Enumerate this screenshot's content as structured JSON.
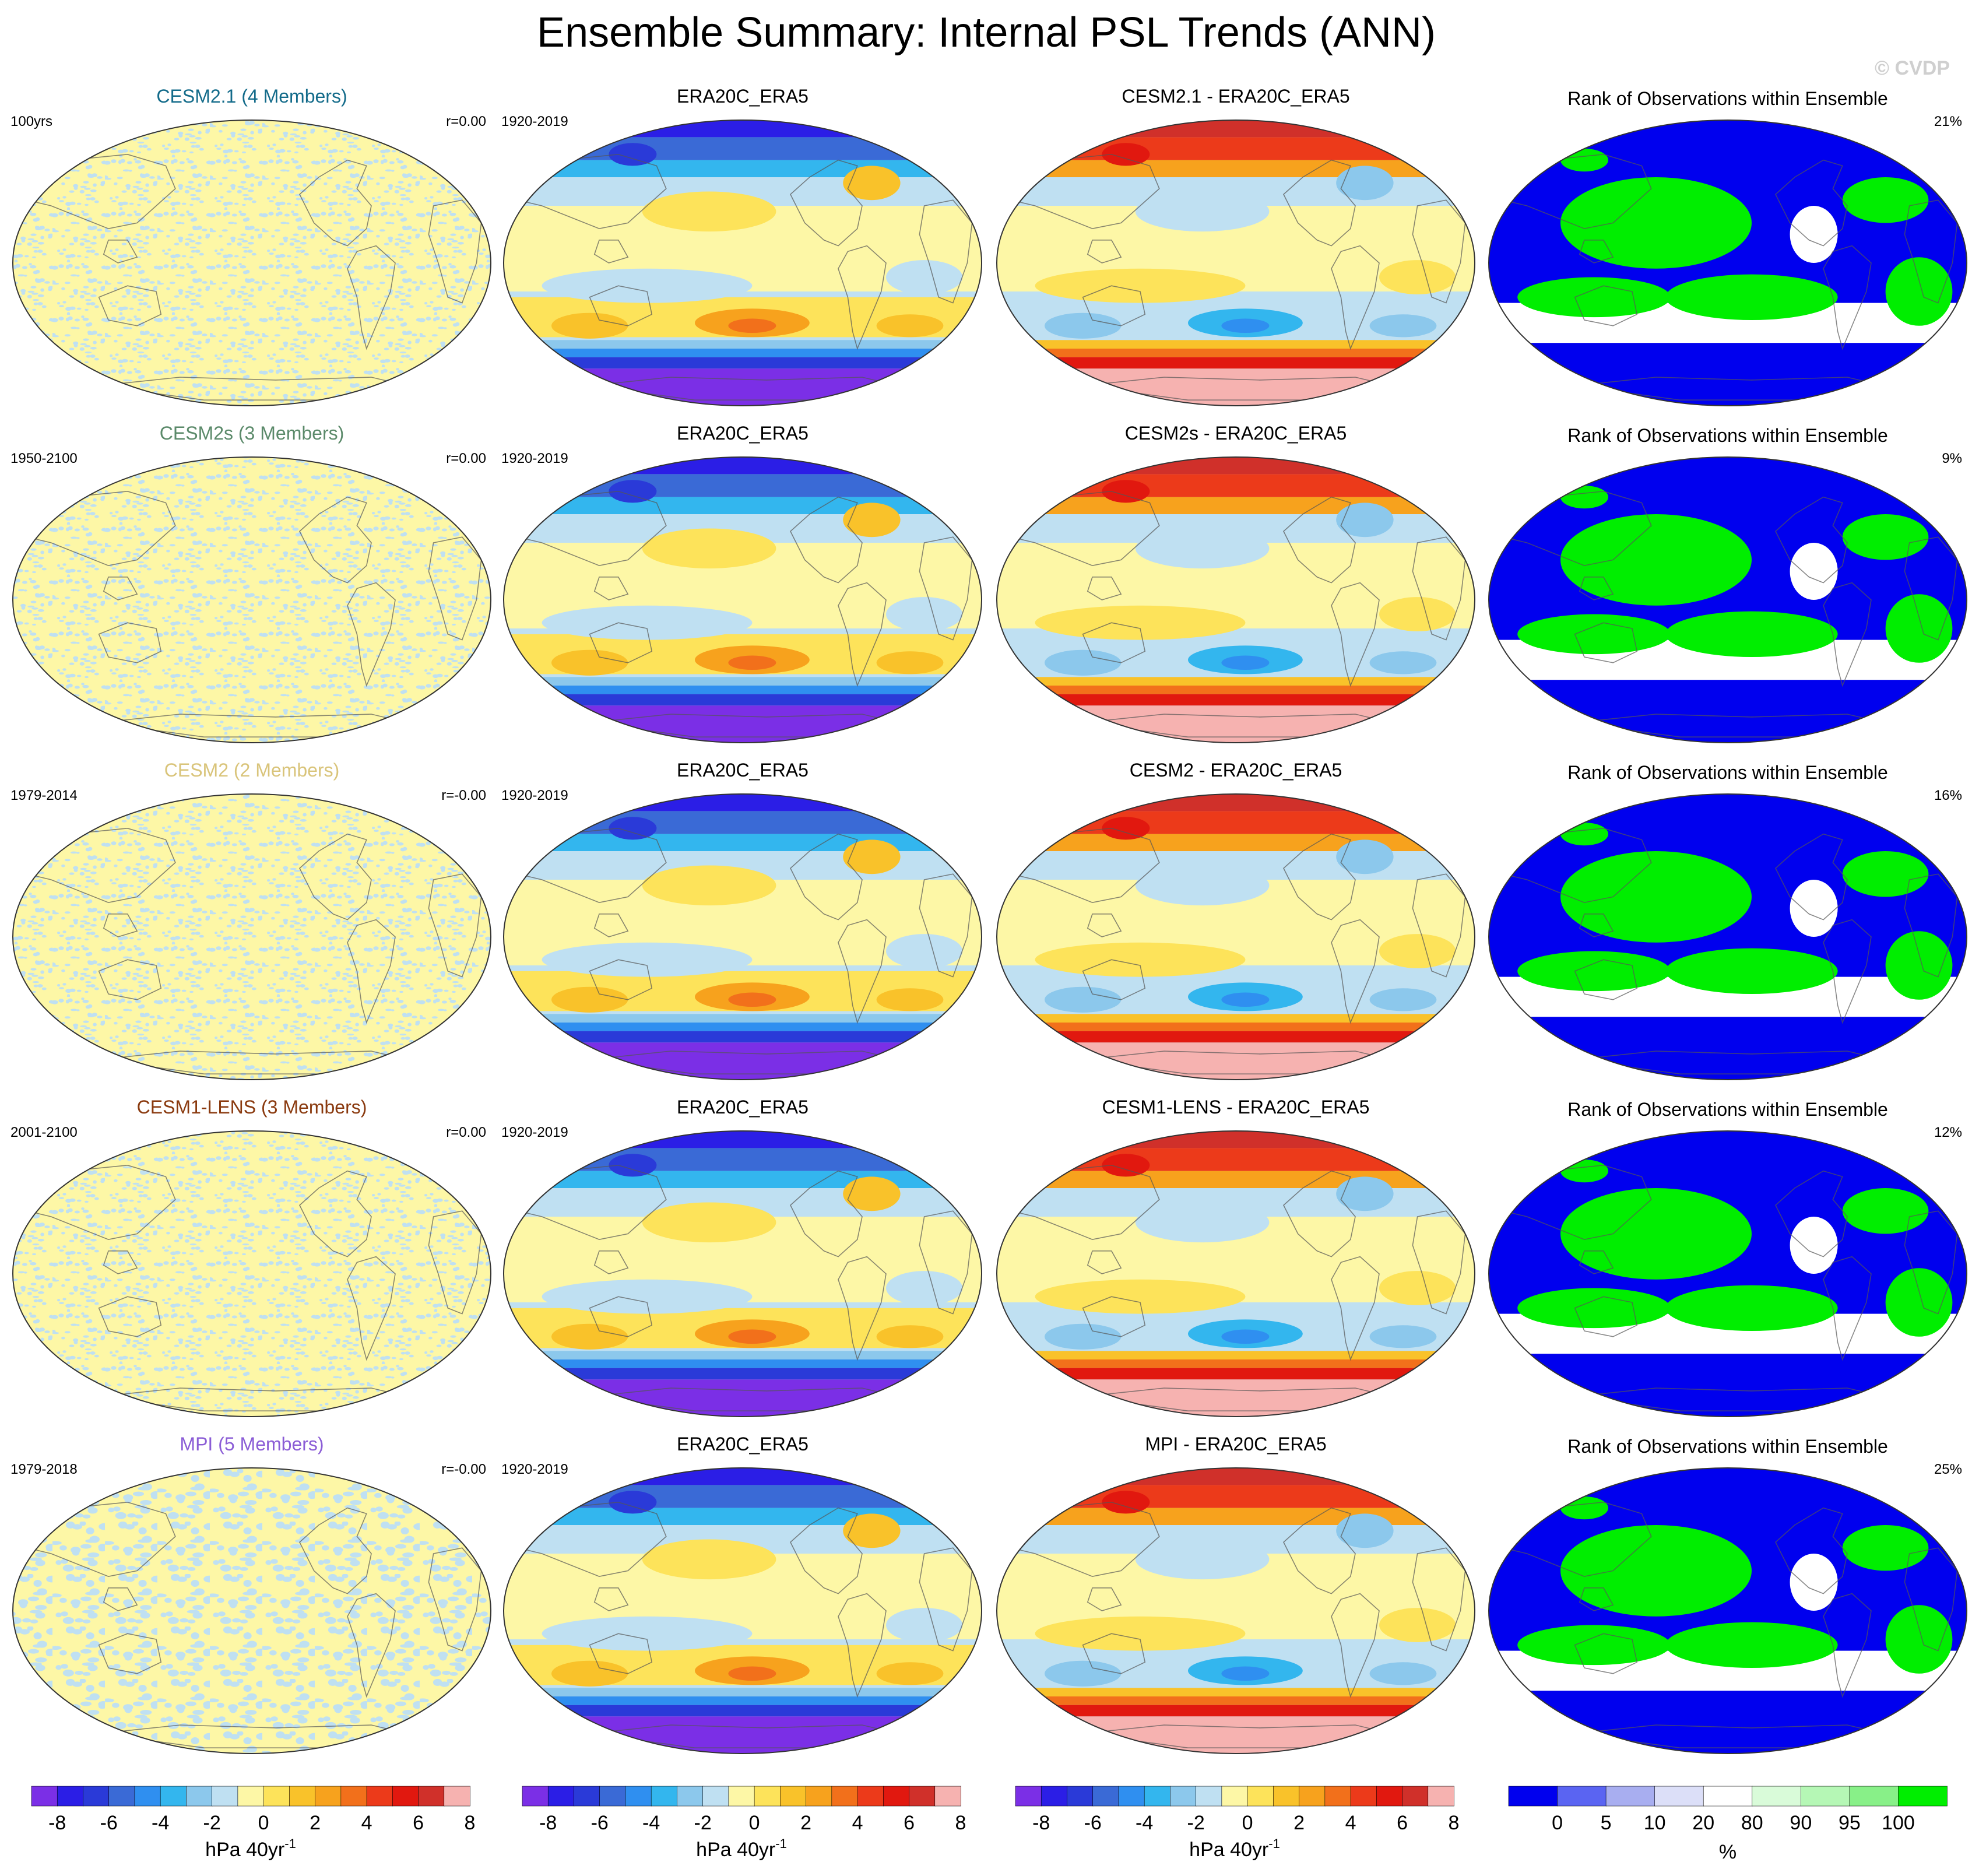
{
  "title": "Ensemble Summary: Internal PSL Trends (ANN)",
  "watermark": "© CVDP",
  "colors": {
    "trend_scale": [
      "#7b2fe6",
      "#2b1ee6",
      "#2a3ad8",
      "#3a6ad6",
      "#2f8ff0",
      "#33b6ee",
      "#8cc8ec",
      "#bfe0f2",
      "#fdf7a6",
      "#fde35a",
      "#f9c22a",
      "#f7a21d",
      "#f2701b",
      "#ec3a1a",
      "#e1180f",
      "#d0302a",
      "#f6b2b0"
    ],
    "rank_scale": [
      "#0000ee",
      "#5a64f2",
      "#a8aef0",
      "#dcdff8",
      "#ffffff",
      "#d9fbd9",
      "#b5f7b5",
      "#88f088",
      "#00ee00"
    ],
    "ocean_cool": "#bfe0f2",
    "ocean_warm": "#fdf7a6",
    "model_title_colors": [
      "#136b8a",
      "#5b8a6a",
      "#d9c47a",
      "#8a3a0f",
      "#8b5dd6"
    ]
  },
  "rows": [
    {
      "model_title": "CESM2.1 (4 Members)",
      "period": "100yrs",
      "corr": "r=0.00",
      "obs_title": "ERA20C_ERA5",
      "obs_period": "1920-2019",
      "diff_title": "CESM2.1 - ERA20C_ERA5",
      "rank_title": "Rank of Observations within Ensemble",
      "rank_pct": "21%"
    },
    {
      "model_title": "CESM2s (3 Members)",
      "period": "1950-2100",
      "corr": "r=0.00",
      "obs_title": "ERA20C_ERA5",
      "obs_period": "1920-2019",
      "diff_title": "CESM2s - ERA20C_ERA5",
      "rank_title": "Rank of Observations within Ensemble",
      "rank_pct": "9%"
    },
    {
      "model_title": "CESM2 (2 Members)",
      "period": "1979-2014",
      "corr": "r=-0.00",
      "obs_title": "ERA20C_ERA5",
      "obs_period": "1920-2019",
      "diff_title": "CESM2 - ERA20C_ERA5",
      "rank_title": "Rank of Observations within Ensemble",
      "rank_pct": "16%"
    },
    {
      "model_title": "CESM1-LENS (3 Members)",
      "period": "2001-2100",
      "corr": "r=0.00",
      "obs_title": "ERA20C_ERA5",
      "obs_period": "1920-2019",
      "diff_title": "CESM1-LENS - ERA20C_ERA5",
      "rank_title": "Rank of Observations within Ensemble",
      "rank_pct": "12%"
    },
    {
      "model_title": "MPI (5 Members)",
      "period": "1979-2018",
      "corr": "r=-0.00",
      "obs_title": "ERA20C_ERA5",
      "obs_period": "1920-2019",
      "diff_title": "MPI - ERA20C_ERA5",
      "rank_title": "Rank of Observations within Ensemble",
      "rank_pct": "25%"
    }
  ],
  "colorbars": {
    "trend_ticks": [
      "-8",
      "-6",
      "-4",
      "-2",
      "0",
      "2",
      "4",
      "6",
      "8"
    ],
    "trend_label": "hPa 40yr",
    "trend_label_sup": "-1",
    "rank_ticks": [
      "0",
      "5",
      "10",
      "20",
      "80",
      "90",
      "95",
      "100"
    ],
    "rank_label": "%"
  },
  "chart_data": {
    "type": "heatmap",
    "title": "Ensemble Summary: Internal PSL Trends (ANN)",
    "projection": "Robinson global map",
    "variable": "PSL trend",
    "units": "hPa 40yr^-1",
    "trend_color_levels": [
      -9,
      -8,
      -7,
      -6,
      -5,
      -4,
      -3,
      -2,
      -1,
      0,
      1,
      2,
      3,
      4,
      5,
      6,
      7,
      8,
      9
    ],
    "rank_color_levels": [
      0,
      5,
      10,
      20,
      80,
      90,
      95,
      100
    ],
    "panels_per_row": [
      "ensemble mean trend",
      "observed trend ERA20C_ERA5",
      "model minus observations",
      "rank of observations within ensemble"
    ],
    "rank_percent_by_model": {
      "CESM2.1": 21,
      "CESM2s": 9,
      "CESM2": 16,
      "CESM1-LENS": 12,
      "MPI": 25
    },
    "pattern_correlation_by_model": {
      "CESM2.1": 0.0,
      "CESM2s": 0.0,
      "CESM2": -0.0,
      "CESM1-LENS": 0.0,
      "MPI": -0.0
    }
  }
}
